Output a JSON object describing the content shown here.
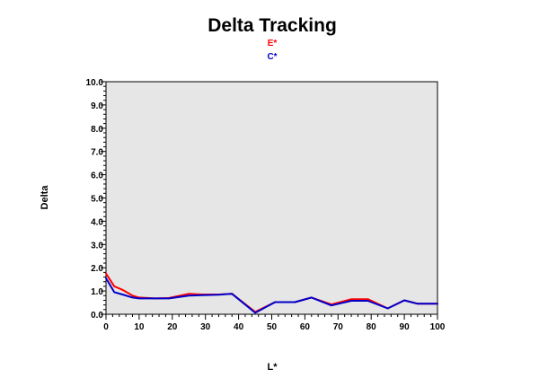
{
  "chart_data": {
    "type": "line",
    "title": "Delta Tracking",
    "xlabel": "L*",
    "ylabel": "Delta",
    "xlim": [
      0,
      100
    ],
    "ylim": [
      0,
      10
    ],
    "x_ticks": [
      "0",
      "10",
      "20",
      "30",
      "40",
      "50",
      "60",
      "70",
      "80",
      "90",
      "100"
    ],
    "y_ticks": [
      "0.0",
      "1.0",
      "2.0",
      "3.0",
      "4.0",
      "5.0",
      "6.0",
      "7.0",
      "8.0",
      "9.0",
      "10.0"
    ],
    "legend_placement": "top-center",
    "grid": false,
    "plot_background": "#e6e6e6",
    "series": [
      {
        "name": "E*",
        "color": "#ff0000",
        "x": [
          0,
          2.5,
          5,
          8,
          10,
          15,
          19,
          25,
          29,
          34,
          38,
          45,
          51,
          57,
          62,
          68,
          74,
          79,
          85,
          90,
          94,
          100
        ],
        "y": [
          1.75,
          1.2,
          1.05,
          0.8,
          0.72,
          0.68,
          0.7,
          0.88,
          0.85,
          0.85,
          0.88,
          0.1,
          0.52,
          0.52,
          0.72,
          0.42,
          0.65,
          0.65,
          0.25,
          0.6,
          0.45,
          0.45
        ]
      },
      {
        "name": "C*",
        "color": "#0000cc",
        "x": [
          0,
          2.5,
          5,
          8,
          10,
          15,
          19,
          25,
          29,
          34,
          38,
          45,
          51,
          57,
          62,
          68,
          74,
          79,
          85,
          90,
          94,
          100
        ],
        "y": [
          1.55,
          0.95,
          0.85,
          0.72,
          0.68,
          0.68,
          0.68,
          0.8,
          0.82,
          0.84,
          0.88,
          0.06,
          0.52,
          0.52,
          0.72,
          0.38,
          0.58,
          0.58,
          0.25,
          0.6,
          0.45,
          0.45
        ]
      }
    ]
  }
}
